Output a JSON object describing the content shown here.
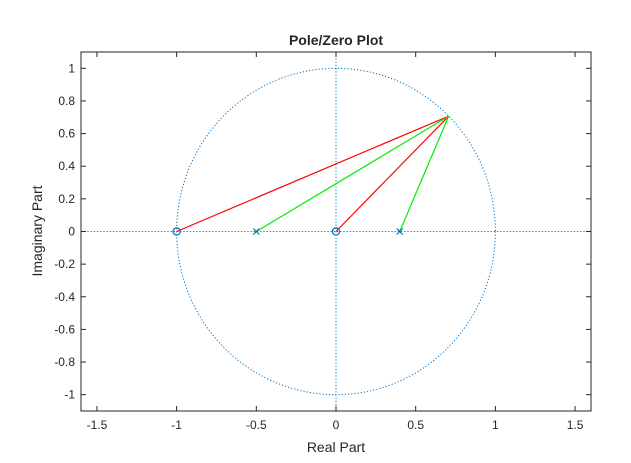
{
  "chart_data": {
    "type": "scatter",
    "title": "Pole/Zero Plot",
    "xlabel": "Real Part",
    "ylabel": "Imaginary Part",
    "xlim": [
      -1.6,
      1.6
    ],
    "ylim": [
      -1.1,
      1.1
    ],
    "x_ticks": [
      -1.5,
      -1,
      -0.5,
      0,
      0.5,
      1,
      1.5
    ],
    "y_ticks": [
      -1,
      -0.8,
      -0.6,
      -0.4,
      -0.2,
      0,
      0.2,
      0.4,
      0.6,
      0.8,
      1
    ],
    "x_tick_labels": [
      "-1.5",
      "-1",
      "-0.5",
      "0",
      "0.5",
      "1",
      "1.5"
    ],
    "y_tick_labels": [
      "-1",
      "-0.8",
      "-0.6",
      "-0.4",
      "-0.2",
      "0",
      "0.2",
      "0.4",
      "0.6",
      "0.8",
      "1"
    ],
    "grid": false,
    "unit_circle": true,
    "zeros": [
      {
        "x": -1,
        "y": 0
      },
      {
        "x": 0,
        "y": 0
      }
    ],
    "poles": [
      {
        "x": -0.5,
        "y": 0
      },
      {
        "x": 0.4,
        "y": 0
      }
    ],
    "evaluation_point": {
      "x": 0.707,
      "y": 0.707
    },
    "vectors": [
      {
        "from": [
          -1,
          0
        ],
        "to": [
          0.707,
          0.707
        ],
        "color": "#ff0000"
      },
      {
        "from": [
          0,
          0
        ],
        "to": [
          0.707,
          0.707
        ],
        "color": "#ff0000"
      },
      {
        "from": [
          -0.5,
          0
        ],
        "to": [
          0.707,
          0.707
        ],
        "color": "#00ee00"
      },
      {
        "from": [
          0.4,
          0
        ],
        "to": [
          0.707,
          0.707
        ],
        "color": "#00ee00"
      }
    ],
    "colors": {
      "marker": "#0072bd",
      "reference_lines": "#0072bd",
      "axes": "#262626",
      "zero_vector": "#ff0000",
      "pole_vector": "#00ee00"
    }
  }
}
